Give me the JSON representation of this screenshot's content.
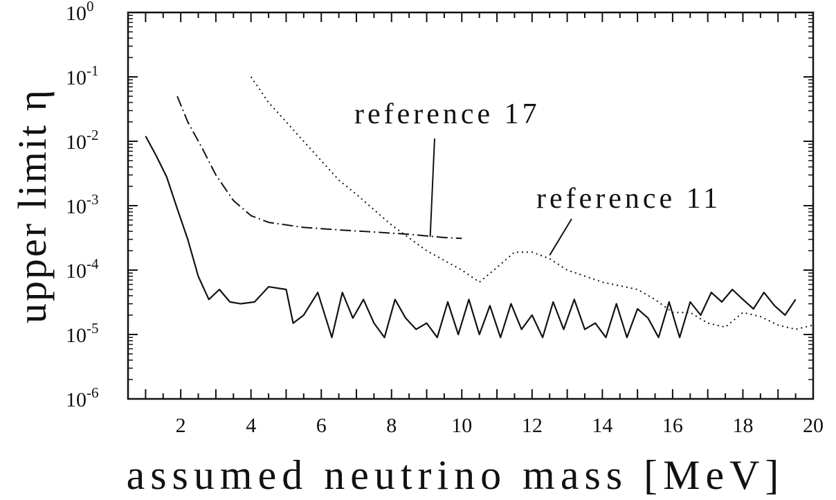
{
  "chart_data": {
    "type": "line",
    "title": "",
    "xlabel": "assumed neutrino mass [MeV]",
    "ylabel": "upper limit η",
    "xlim": [
      0.5,
      20
    ],
    "ylim": [
      1e-06,
      1
    ],
    "y_scale": "log",
    "x_tick_labels": [
      "2",
      "4",
      "6",
      "8",
      "10",
      "12",
      "14",
      "16",
      "18",
      "20"
    ],
    "y_tick_labels": [
      {
        "base": "10",
        "exp": "0"
      },
      {
        "base": "10",
        "exp": "-1"
      },
      {
        "base": "10",
        "exp": "-2"
      },
      {
        "base": "10",
        "exp": "-3"
      },
      {
        "base": "10",
        "exp": "-4"
      },
      {
        "base": "10",
        "exp": "-5"
      },
      {
        "base": "10",
        "exp": "-6"
      }
    ],
    "grid": false,
    "legend": "none",
    "annotations": [
      {
        "text": "reference 17",
        "points_to": {
          "x": 9.1,
          "y": 0.00033
        }
      },
      {
        "text": "reference 11",
        "points_to": {
          "x": 12.5,
          "y": 0.00017
        }
      }
    ],
    "series": [
      {
        "style": "solid",
        "x": [
          1.0,
          1.3,
          1.6,
          1.9,
          2.2,
          2.5,
          2.8,
          3.1,
          3.4,
          3.7,
          4.1,
          4.5,
          5.0,
          5.2,
          5.5,
          5.9,
          6.3,
          6.6,
          6.9,
          7.2,
          7.5,
          7.8,
          8.1,
          8.4,
          8.7,
          9.0,
          9.3,
          9.6,
          9.9,
          10.2,
          10.5,
          10.8,
          11.1,
          11.4,
          11.7,
          12.0,
          12.3,
          12.6,
          12.9,
          13.2,
          13.5,
          13.8,
          14.1,
          14.4,
          14.7,
          15.0,
          15.3,
          15.6,
          15.9,
          16.2,
          16.5,
          16.8,
          17.1,
          17.4,
          17.7,
          18.0,
          18.3,
          18.6,
          18.9,
          19.2,
          19.5
        ],
        "y": [
          0.012,
          0.006,
          0.0028,
          0.0009,
          0.0003,
          8e-05,
          3.5e-05,
          5e-05,
          3.2e-05,
          3e-05,
          3.2e-05,
          5.5e-05,
          5e-05,
          1.5e-05,
          2e-05,
          4.5e-05,
          9e-06,
          4.5e-05,
          1.8e-05,
          3.5e-05,
          1.5e-05,
          9e-06,
          3.5e-05,
          1.8e-05,
          1.2e-05,
          1.5e-05,
          9e-06,
          3.2e-05,
          1e-05,
          3.5e-05,
          1e-05,
          2.8e-05,
          9e-06,
          3e-05,
          1.2e-05,
          2e-05,
          9e-06,
          3.2e-05,
          1.2e-05,
          3.5e-05,
          1.2e-05,
          1.5e-05,
          9e-06,
          3e-05,
          9e-06,
          2.5e-05,
          1.8e-05,
          9e-06,
          3.2e-05,
          9e-06,
          3.2e-05,
          2e-05,
          4.5e-05,
          3.2e-05,
          5e-05,
          3.5e-05,
          2.5e-05,
          4.5e-05,
          2.8e-05,
          2e-05,
          3.5e-05
        ]
      },
      {
        "style": "dash-dot",
        "x": [
          1.9,
          2.2,
          2.6,
          3.0,
          3.5,
          4.0,
          4.5,
          5.5,
          6.5,
          7.5,
          8.5,
          9.5,
          10.0
        ],
        "y": [
          0.05,
          0.02,
          0.008,
          0.003,
          0.0012,
          0.0007,
          0.00055,
          0.00046,
          0.00042,
          0.00039,
          0.00036,
          0.00032,
          0.00031
        ]
      },
      {
        "style": "dotted",
        "x": [
          4.0,
          4.5,
          5.0,
          5.5,
          6.0,
          6.5,
          7.0,
          8.0,
          9.0,
          10.0,
          10.5,
          11.0,
          11.5,
          12.0,
          12.5,
          13.0,
          14.0,
          15.0,
          15.5,
          16.0,
          16.5,
          17.0,
          17.5,
          18.0,
          18.5,
          19.0,
          19.5,
          20.0
        ],
        "y": [
          0.1,
          0.04,
          0.02,
          0.01,
          0.005,
          0.0025,
          0.0015,
          0.0005,
          0.0002,
          0.0001,
          6.5e-05,
          0.00011,
          0.00019,
          0.00019,
          0.00015,
          0.0001,
          6.5e-05,
          5e-05,
          3.5e-05,
          2.2e-05,
          2.2e-05,
          1.5e-05,
          1.3e-05,
          2.2e-05,
          1.9e-05,
          1.4e-05,
          1.2e-05,
          1.4e-05
        ]
      }
    ]
  }
}
